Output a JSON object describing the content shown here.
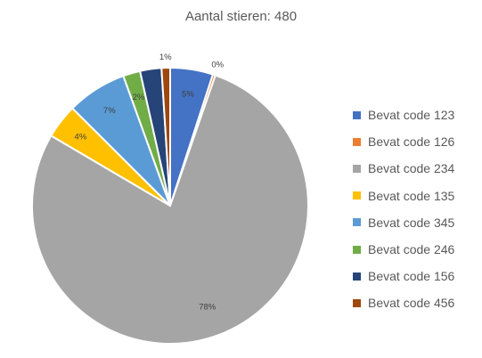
{
  "chart_data": {
    "type": "pie",
    "title": "Aantal stieren: 480",
    "series": [
      {
        "name": "Bevat code 123",
        "value": 5,
        "label": "5%",
        "color": "#4472C4"
      },
      {
        "name": "Bevat code 126",
        "value": 0.3,
        "label": "0%",
        "color": "#ED7D31"
      },
      {
        "name": "Bevat code 234",
        "value": 78,
        "label": "78%",
        "color": "#A5A5A5"
      },
      {
        "name": "Bevat code 135",
        "value": 4,
        "label": "4%",
        "color": "#FFC000"
      },
      {
        "name": "Bevat code 345",
        "value": 7,
        "label": "7%",
        "color": "#5B9BD5"
      },
      {
        "name": "Bevat code 246",
        "value": 2,
        "label": "2%",
        "color": "#70AD47"
      },
      {
        "name": "Bevat code 156",
        "value": 2.5,
        "label": "",
        "color": "#264478"
      },
      {
        "name": "Bevat code 456",
        "value": 1,
        "label": "1%",
        "color": "#9E480E"
      }
    ],
    "legend_position": "right"
  }
}
